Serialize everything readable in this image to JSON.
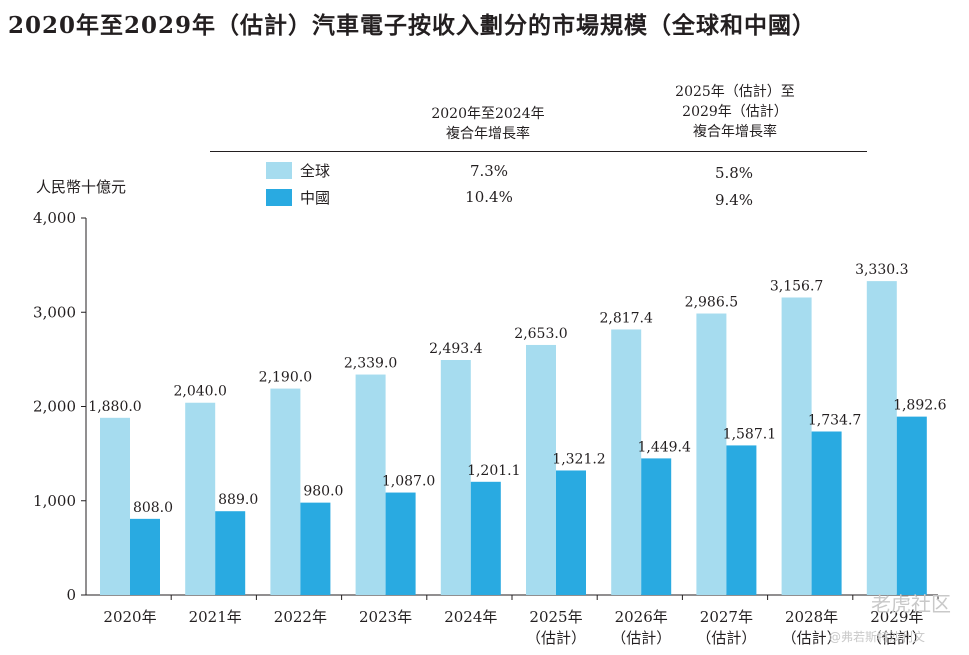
{
  "header": {
    "title": "2020年至2029年（估計）汽車電子按收入劃分的市場規模（全球和中國）",
    "unit": "人民幣十億元"
  },
  "cagr": {
    "period1_line1": "2020年至2024年",
    "period1_line2": "複合年增長率",
    "period2_line1": "2025年（估計）至",
    "period2_line2": "2029年（估計）",
    "period2_line3": "複合年增長率",
    "global_label": "全球",
    "china_label": "中國",
    "global_p1": "7.3%",
    "global_p2": "5.8%",
    "china_p1": "10.4%",
    "china_p2": "9.4%"
  },
  "colors": {
    "global": "#a6dcef",
    "china": "#29aae1"
  },
  "watermark": {
    "main": "老虎社区",
    "sub": "@弗若斯特沙利文"
  },
  "chart_data": {
    "type": "bar",
    "title": "2020年至2029年（估計）汽車電子按收入劃分的市場規模（全球和中國）",
    "ylabel": "人民幣十億元",
    "xlabel": "",
    "ylim": [
      0,
      4000
    ],
    "yticks": [
      0,
      1000,
      2000,
      3000,
      4000
    ],
    "ytick_labels": [
      "0",
      "1,000",
      "2,000",
      "3,000",
      "4,000"
    ],
    "grid": false,
    "categories": [
      "2020年",
      "2021年",
      "2022年",
      "2023年",
      "2024年",
      "2025年",
      "2026年",
      "2027年",
      "2028年",
      "2029年"
    ],
    "category_sublabels": [
      "",
      "",
      "",
      "",
      "",
      "（估計）",
      "（估計）",
      "（估計）",
      "（估計）",
      "（估計）"
    ],
    "series": [
      {
        "name": "全球",
        "values": [
          1880.0,
          2040.0,
          2190.0,
          2339.0,
          2493.4,
          2653.0,
          2817.4,
          2986.5,
          3156.7,
          3330.3
        ],
        "labels": [
          "1,880.0",
          "2,040.0",
          "2,190.0",
          "2,339.0",
          "2,493.4",
          "2,653.0",
          "2,817.4",
          "2,986.5",
          "3,156.7",
          "3,330.3"
        ]
      },
      {
        "name": "中國",
        "values": [
          808.0,
          889.0,
          980.0,
          1087.0,
          1201.1,
          1321.2,
          1449.4,
          1587.1,
          1734.7,
          1892.6
        ],
        "labels": [
          "808.0",
          "889.0",
          "980.0",
          "1,087.0",
          "1,201.1",
          "1,321.2",
          "1,449.4",
          "1,587.1",
          "1,734.7",
          "1,892.6"
        ]
      }
    ]
  }
}
